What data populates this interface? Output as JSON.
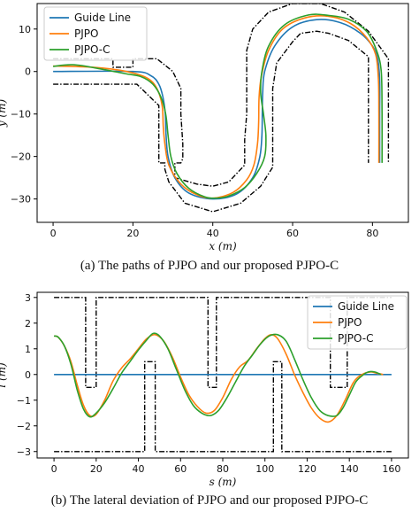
{
  "captions": {
    "a": "(a) The paths of PJPO and our proposed PJPO-C",
    "b": "(b) The lateral deviation of PJPO and our proposed PJPO-C"
  },
  "colors": {
    "guide": "#1f77b4",
    "pjpo": "#ff7f0e",
    "pjpoc": "#2ca02c",
    "bound": "#000000"
  },
  "chart_data": [
    {
      "type": "line",
      "xlabel": "x (m)",
      "ylabel": "y (m)",
      "xlim": [
        -4,
        89
      ],
      "ylim": [
        -35.5,
        16
      ],
      "xticks": [
        0,
        20,
        40,
        60,
        80
      ],
      "yticks": [
        -30,
        -20,
        -10,
        0,
        10
      ],
      "legend": {
        "placement": "top-left",
        "entries": [
          "Guide Line",
          "PJPO",
          "PJPO-C"
        ]
      },
      "series": [
        {
          "name": "Guide Line",
          "color": "#1f77b4",
          "points": [
            [
              0,
              0
            ],
            [
              20,
              0
            ],
            [
              24.5,
              -1
            ],
            [
              26.5,
              -3
            ],
            [
              27.5,
              -6
            ],
            [
              28.1,
              -10
            ],
            [
              28.3,
              -15
            ],
            [
              28.8,
              -20
            ],
            [
              30.5,
              -25
            ],
            [
              34,
              -28.6
            ],
            [
              40,
              -30
            ],
            [
              46,
              -28.8
            ],
            [
              50,
              -25
            ],
            [
              51.8,
              -20
            ],
            [
              52.3,
              -15
            ],
            [
              52.4,
              -10
            ],
            [
              52.5,
              -5
            ],
            [
              53,
              0
            ],
            [
              55.5,
              6
            ],
            [
              60,
              10.5
            ],
            [
              66,
              12.2
            ],
            [
              72,
              11.5
            ],
            [
              77,
              9
            ],
            [
              80,
              6
            ],
            [
              81.3,
              3
            ],
            [
              81.8,
              -2
            ],
            [
              81.8,
              -10
            ],
            [
              81.8,
              -21.5
            ]
          ]
        },
        {
          "name": "PJPO",
          "color": "#ff7f0e",
          "points": [
            [
              0,
              1.3
            ],
            [
              10,
              1
            ],
            [
              18,
              0.1
            ],
            [
              23.5,
              -1.5
            ],
            [
              26,
              -4
            ],
            [
              27.3,
              -8
            ],
            [
              27.6,
              -13
            ],
            [
              28,
              -17
            ],
            [
              29,
              -22
            ],
            [
              32,
              -26.5
            ],
            [
              36,
              -29
            ],
            [
              40,
              -29.8
            ],
            [
              45,
              -28.5
            ],
            [
              48.5,
              -25.5
            ],
            [
              50.3,
              -22
            ],
            [
              51.2,
              -17
            ],
            [
              51.5,
              -12
            ],
            [
              51.6,
              -6
            ],
            [
              52.2,
              -1
            ],
            [
              54,
              5
            ],
            [
              57.5,
              10
            ],
            [
              63,
              12.6
            ],
            [
              69,
              13
            ],
            [
              74.5,
              11.3
            ],
            [
              78.5,
              8
            ],
            [
              80.8,
              4
            ],
            [
              81.5,
              -2
            ],
            [
              81.6,
              -10
            ],
            [
              81.6,
              -21.5
            ]
          ]
        },
        {
          "name": "PJPO-C",
          "color": "#2ca02c",
          "points": [
            [
              0,
              1.2
            ],
            [
              5,
              1.6
            ],
            [
              12,
              0.6
            ],
            [
              18,
              -0.5
            ],
            [
              22,
              -1.2
            ],
            [
              25,
              -3
            ],
            [
              27,
              -6
            ],
            [
              28.2,
              -10
            ],
            [
              28.8,
              -15
            ],
            [
              29.5,
              -20
            ],
            [
              31,
              -24
            ],
            [
              34,
              -27.5
            ],
            [
              38,
              -29.5
            ],
            [
              41,
              -29.8
            ],
            [
              44,
              -29.3
            ],
            [
              48,
              -27.3
            ],
            [
              51,
              -24
            ],
            [
              53,
              -20
            ],
            [
              53.3,
              -15
            ],
            [
              52.7,
              -10
            ],
            [
              52,
              -5
            ],
            [
              52.3,
              0
            ],
            [
              54,
              6
            ],
            [
              58,
              11
            ],
            [
              64,
              13.3
            ],
            [
              69,
              13.2
            ],
            [
              74,
              12.3
            ],
            [
              78.5,
              9.5
            ],
            [
              81,
              5
            ],
            [
              82.2,
              0
            ],
            [
              82.4,
              -10
            ],
            [
              82.4,
              -21.5
            ]
          ]
        }
      ],
      "bounds": [
        [
          [
            0,
            3
          ],
          [
            15,
            3
          ],
          [
            15,
            1
          ],
          [
            20,
            1
          ],
          [
            20,
            3
          ],
          [
            26,
            3
          ],
          [
            30,
            0
          ],
          [
            32,
            -4
          ],
          [
            32,
            -10
          ],
          [
            32.5,
            -17
          ],
          [
            32.5,
            -20.5
          ],
          [
            32,
            -21.5
          ],
          [
            30.5,
            -21.5
          ],
          [
            30.5,
            -25
          ],
          [
            36,
            -26.5
          ],
          [
            40,
            -27
          ],
          [
            44,
            -26
          ],
          [
            48,
            -22
          ],
          [
            48,
            -16
          ],
          [
            48.5,
            -10
          ],
          [
            48.5,
            -2
          ],
          [
            48.5,
            5
          ],
          [
            50,
            10
          ],
          [
            54,
            14
          ],
          [
            60,
            16
          ],
          [
            67,
            16
          ],
          [
            73,
            14
          ],
          [
            79,
            9.5
          ],
          [
            84,
            3
          ],
          [
            84,
            -21.5
          ]
        ],
        [
          [
            0,
            -3
          ],
          [
            15,
            -3
          ],
          [
            21,
            -3
          ],
          [
            26.5,
            -8
          ],
          [
            26.5,
            -14
          ],
          [
            26.5,
            -21.5
          ],
          [
            28,
            -21.5
          ],
          [
            28,
            -23
          ],
          [
            29,
            -26
          ],
          [
            33,
            -31
          ],
          [
            40,
            -33
          ],
          [
            47,
            -31
          ],
          [
            52,
            -27
          ],
          [
            55,
            -22.5
          ],
          [
            55,
            -16
          ],
          [
            55,
            -10
          ],
          [
            55,
            -4
          ],
          [
            56,
            2
          ],
          [
            60,
            7
          ],
          [
            62,
            9
          ],
          [
            66,
            9.5
          ],
          [
            69,
            9
          ],
          [
            74,
            7.3
          ],
          [
            79,
            3.5
          ],
          [
            79,
            -21.5
          ]
        ]
      ]
    },
    {
      "type": "line",
      "xlabel": "s (m)",
      "ylabel": "l (m)",
      "xlim": [
        -8,
        168
      ],
      "ylim": [
        -3.25,
        3.2
      ],
      "xticks": [
        0,
        20,
        40,
        60,
        80,
        100,
        120,
        140,
        160
      ],
      "yticks": [
        -3,
        -2,
        -1,
        0,
        1,
        2,
        3
      ],
      "legend": {
        "placement": "top-right",
        "entries": [
          "Guide Line",
          "PJPO",
          "PJPO-C"
        ]
      },
      "series": [
        {
          "name": "Guide Line",
          "color": "#1f77b4",
          "points": [
            [
              0,
              0
            ],
            [
              160,
              0
            ]
          ]
        },
        {
          "name": "PJPO",
          "color": "#ff7f0e",
          "points": [
            [
              0,
              1.5
            ],
            [
              2,
              1.45
            ],
            [
              5,
              1.1
            ],
            [
              8,
              0.5
            ],
            [
              11,
              -0.4
            ],
            [
              14,
              -1.2
            ],
            [
              17,
              -1.6
            ],
            [
              20,
              -1.55
            ],
            [
              24,
              -1.0
            ],
            [
              28,
              -0.25
            ],
            [
              32,
              0.25
            ],
            [
              36,
              0.6
            ],
            [
              40,
              1.0
            ],
            [
              44,
              1.4
            ],
            [
              48,
              1.55
            ],
            [
              52,
              1.3
            ],
            [
              56,
              0.7
            ],
            [
              60,
              -0.1
            ],
            [
              64,
              -0.8
            ],
            [
              68,
              -1.25
            ],
            [
              72,
              -1.5
            ],
            [
              76,
              -1.4
            ],
            [
              80,
              -0.9
            ],
            [
              84,
              -0.2
            ],
            [
              88,
              0.3
            ],
            [
              92,
              0.55
            ],
            [
              96,
              1.0
            ],
            [
              100,
              1.4
            ],
            [
              103,
              1.55
            ],
            [
              106,
              1.4
            ],
            [
              110,
              0.8
            ],
            [
              114,
              0.0
            ],
            [
              118,
              -0.7
            ],
            [
              122,
              -1.3
            ],
            [
              126,
              -1.7
            ],
            [
              130,
              -1.85
            ],
            [
              134,
              -1.6
            ],
            [
              138,
              -1.0
            ],
            [
              142,
              -0.3
            ],
            [
              146,
              0.0
            ],
            [
              150,
              0.1
            ],
            [
              153,
              0.05
            ],
            [
              156,
              0.0
            ]
          ]
        },
        {
          "name": "PJPO-C",
          "color": "#2ca02c",
          "points": [
            [
              0,
              1.5
            ],
            [
              2,
              1.45
            ],
            [
              5,
              1.1
            ],
            [
              8,
              0.4
            ],
            [
              11,
              -0.6
            ],
            [
              14,
              -1.35
            ],
            [
              17,
              -1.65
            ],
            [
              20,
              -1.5
            ],
            [
              24,
              -1.1
            ],
            [
              28,
              -0.55
            ],
            [
              32,
              0.05
            ],
            [
              36,
              0.5
            ],
            [
              40,
              0.95
            ],
            [
              44,
              1.35
            ],
            [
              47,
              1.6
            ],
            [
              50,
              1.5
            ],
            [
              54,
              1.0
            ],
            [
              58,
              0.2
            ],
            [
              62,
              -0.6
            ],
            [
              66,
              -1.2
            ],
            [
              70,
              -1.5
            ],
            [
              74,
              -1.6
            ],
            [
              78,
              -1.4
            ],
            [
              82,
              -0.9
            ],
            [
              86,
              -0.3
            ],
            [
              90,
              0.3
            ],
            [
              94,
              0.75
            ],
            [
              98,
              1.2
            ],
            [
              102,
              1.5
            ],
            [
              106,
              1.55
            ],
            [
              110,
              1.3
            ],
            [
              114,
              0.6
            ],
            [
              118,
              -0.2
            ],
            [
              122,
              -0.9
            ],
            [
              126,
              -1.4
            ],
            [
              130,
              -1.6
            ],
            [
              134,
              -1.6
            ],
            [
              137,
              -1.3
            ],
            [
              140,
              -0.8
            ],
            [
              143,
              -0.3
            ],
            [
              146,
              -0.05
            ],
            [
              149,
              0.1
            ],
            [
              152,
              0.1
            ],
            [
              155,
              0.0
            ]
          ]
        }
      ],
      "bounds": [
        [
          [
            0,
            3
          ],
          [
            15,
            3
          ],
          [
            15,
            -0.5
          ],
          [
            20,
            -0.5
          ],
          [
            20,
            3
          ],
          [
            73,
            3
          ],
          [
            73,
            -0.5
          ],
          [
            77,
            -0.5
          ],
          [
            77,
            3
          ],
          [
            131,
            3
          ],
          [
            131,
            -0.5
          ],
          [
            139,
            -0.5
          ],
          [
            139,
            3
          ],
          [
            160,
            3
          ]
        ],
        [
          [
            0,
            -3
          ],
          [
            43,
            -3
          ],
          [
            43,
            0.5
          ],
          [
            48,
            0.5
          ],
          [
            48,
            -3
          ],
          [
            104,
            -3
          ],
          [
            104,
            0.5
          ],
          [
            108,
            0.5
          ],
          [
            108,
            -3
          ],
          [
            160,
            -3
          ]
        ]
      ]
    }
  ]
}
